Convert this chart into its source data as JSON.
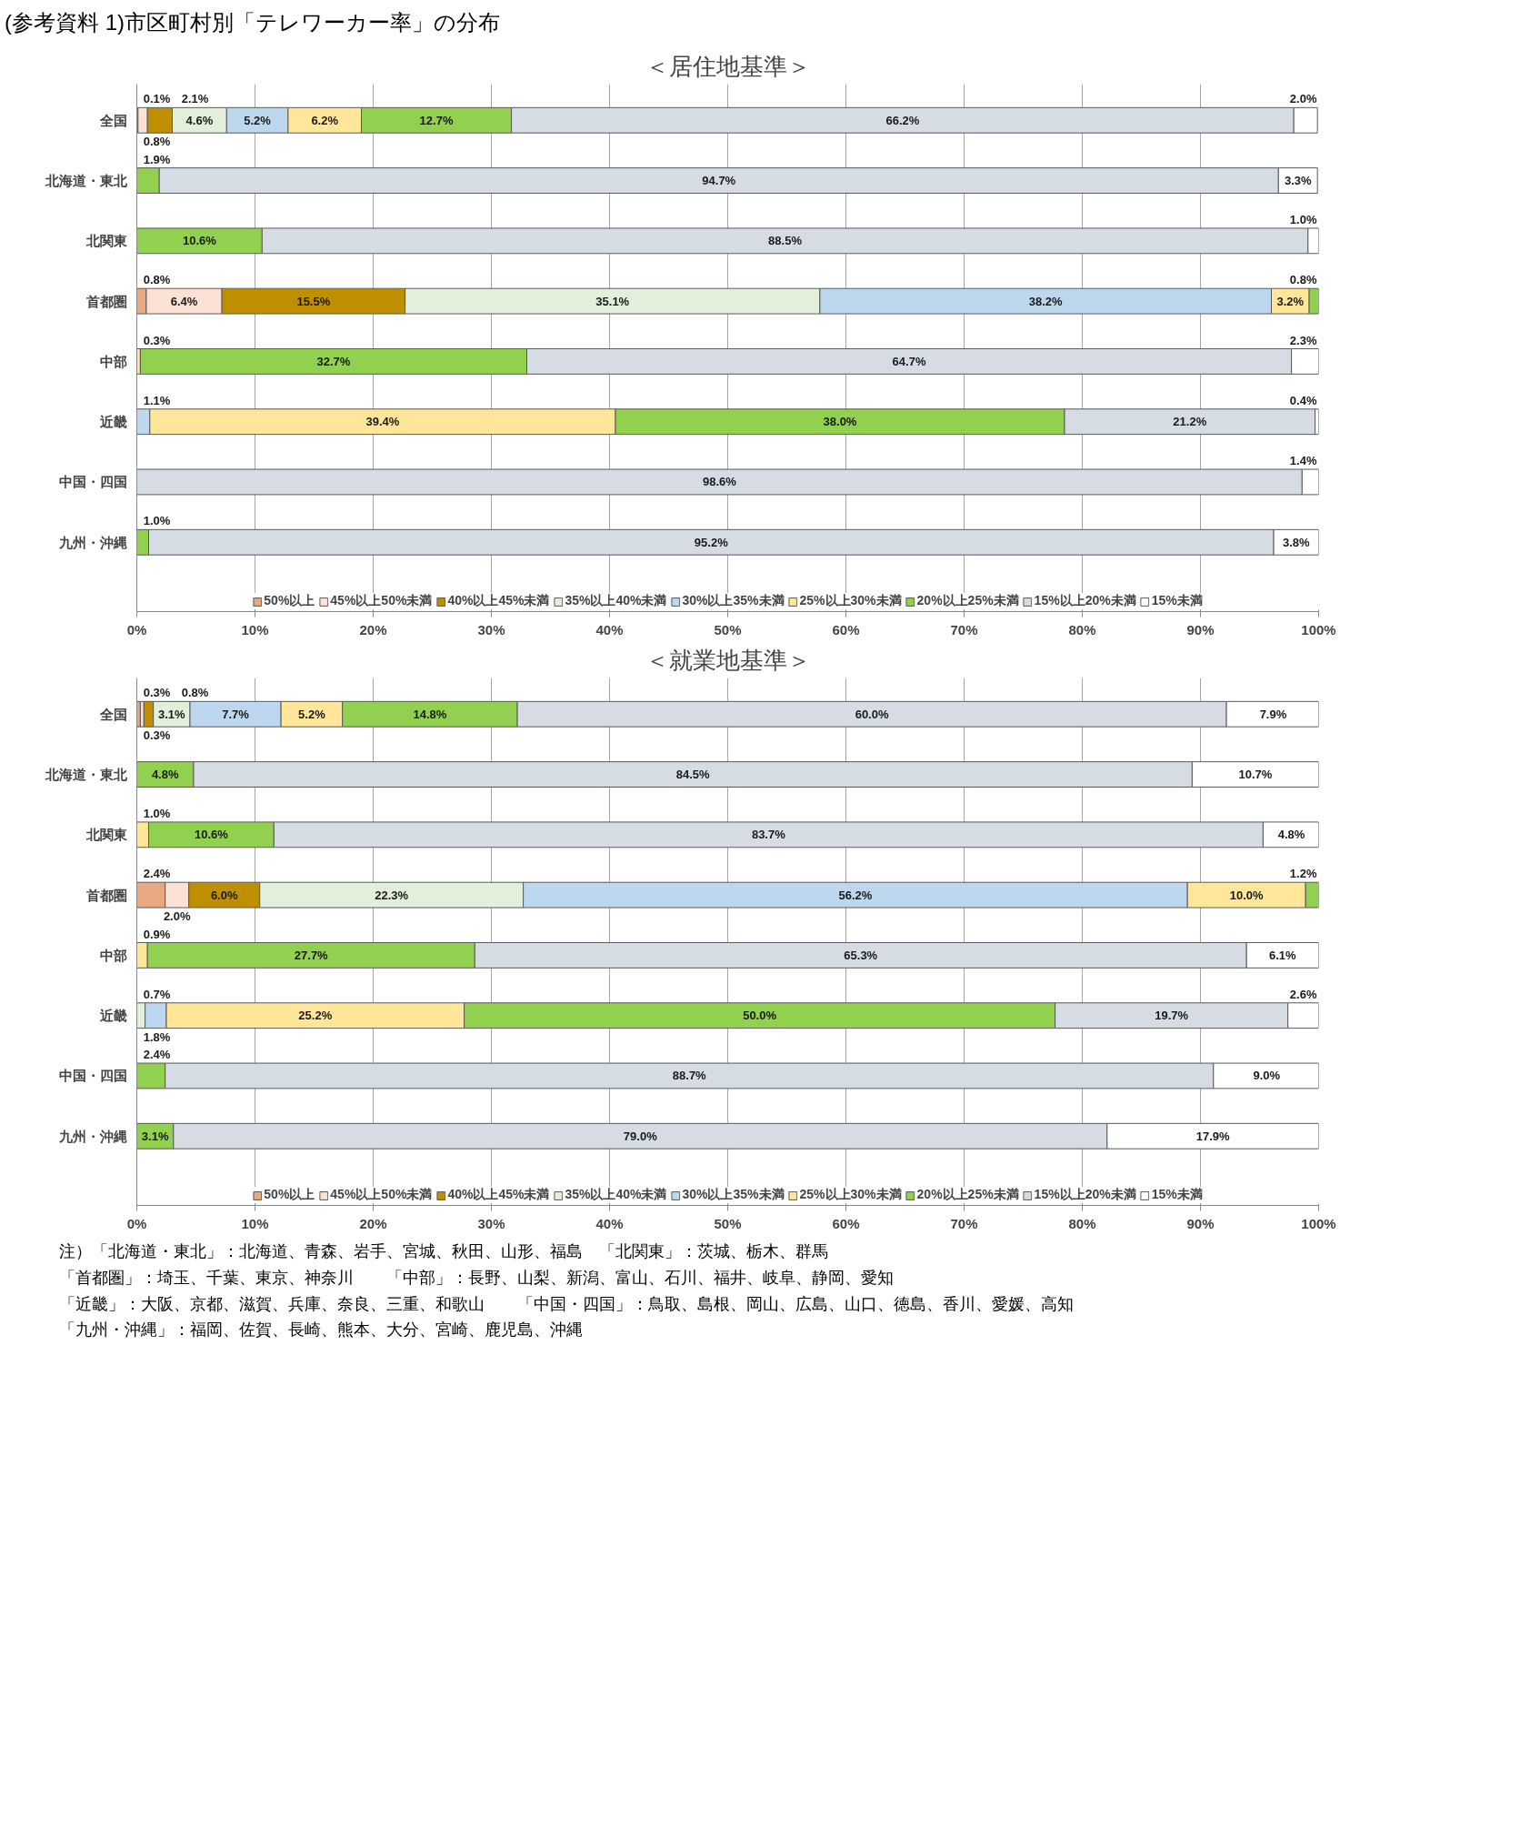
{
  "chart_data": [
    {
      "type": "bar",
      "orientation": "horizontal",
      "stacked": true,
      "title": "＜居住地基準＞",
      "annotations": [
        "(参考資料 1)市区町村別「テレワーカー率」の分布"
      ],
      "categories": [
        "全国",
        "北海道・東北",
        "北関東",
        "首都圏",
        "中部",
        "近畿",
        "中国・四国",
        "九州・沖縄"
      ],
      "xlim": [
        0,
        100
      ],
      "xticks": [
        {
          "value": 0,
          "label": "0%"
        },
        {
          "value": 10,
          "label": "10%"
        },
        {
          "value": 20,
          "label": "20%"
        },
        {
          "value": 30,
          "label": "30%"
        },
        {
          "value": 40,
          "label": "40%"
        },
        {
          "value": 50,
          "label": "50%"
        },
        {
          "value": 60,
          "label": "60%"
        },
        {
          "value": 70,
          "label": "70%"
        },
        {
          "value": 80,
          "label": "80%"
        },
        {
          "value": 90,
          "label": "90%"
        },
        {
          "value": 100,
          "label": "100%"
        }
      ],
      "grid": "x",
      "legend": "bottom",
      "series": [
        {
          "name": "50%以上",
          "color": "#e8a882",
          "values": [
            0.1,
            null,
            null,
            0.8,
            null,
            null,
            null,
            null
          ],
          "value_labels": [
            "0.1%",
            null,
            null,
            "0.8%",
            null,
            null,
            null,
            null
          ]
        },
        {
          "name": "45%以上50%未満",
          "color": "#fbe2d5",
          "values": [
            0.8,
            null,
            null,
            6.4,
            null,
            null,
            null,
            null
          ],
          "value_labels": [
            "0.8%",
            null,
            null,
            "6.4%",
            null,
            null,
            null,
            null
          ]
        },
        {
          "name": "40%以上45%未満",
          "color": "#bf8f00",
          "values": [
            2.1,
            null,
            null,
            15.5,
            null,
            null,
            null,
            null
          ],
          "value_labels": [
            "2.1%",
            null,
            null,
            "15.5%",
            null,
            null,
            null,
            null
          ]
        },
        {
          "name": "35%以上40%未満",
          "color": "#e2efda",
          "values": [
            4.6,
            null,
            null,
            35.1,
            null,
            null,
            null,
            null
          ],
          "value_labels": [
            "4.6%",
            null,
            null,
            "35.1%",
            null,
            null,
            null,
            null
          ]
        },
        {
          "name": "30%以上35%未満",
          "color": "#bdd7ee",
          "values": [
            5.2,
            null,
            null,
            38.2,
            null,
            1.1,
            null,
            null
          ],
          "value_labels": [
            "5.2%",
            null,
            null,
            "38.2%",
            null,
            "1.1%",
            null,
            null
          ]
        },
        {
          "name": "25%以上30%未満",
          "color": "#ffe699",
          "values": [
            6.2,
            null,
            null,
            3.2,
            0.3,
            39.4,
            null,
            null
          ],
          "value_labels": [
            "6.2%",
            null,
            null,
            "3.2%",
            "0.3%",
            "39.4%",
            null,
            null
          ]
        },
        {
          "name": "20%以上25%未満",
          "color": "#92d050",
          "values": [
            12.7,
            1.9,
            10.6,
            0.8,
            32.7,
            38.0,
            null,
            1.0
          ],
          "value_labels": [
            "12.7%",
            "1.9%",
            "10.6%",
            "0.8%",
            "32.7%",
            "38.0%",
            null,
            "1.0%"
          ]
        },
        {
          "name": "15%以上20%未満",
          "color": "#d6dce4",
          "values": [
            66.2,
            94.7,
            88.5,
            null,
            64.7,
            21.2,
            98.6,
            95.2
          ],
          "value_labels": [
            "66.2%",
            "94.7%",
            "88.5%",
            null,
            "64.7%",
            "21.2%",
            "98.6%",
            "95.2%"
          ]
        },
        {
          "name": "15%未満",
          "color": "#ffffff",
          "values": [
            2.0,
            3.3,
            1.0,
            null,
            2.3,
            0.4,
            1.4,
            3.8
          ],
          "value_labels": [
            "2.0%",
            "3.3%",
            "1.0%",
            null,
            "2.3%",
            "0.4%",
            "1.4%",
            "3.8%"
          ]
        }
      ]
    },
    {
      "type": "bar",
      "orientation": "horizontal",
      "stacked": true,
      "title": "＜就業地基準＞",
      "annotations": [
        "注）「北海道・東北」：北海道、青森、岩手、宮城、秋田、山形、福島　「北関東」：茨城、栃木、群馬",
        "「首都圏」：埼玉、千葉、東京、神奈川　　「中部」：長野、山梨、新潟、富山、石川、福井、岐阜、静岡、愛知",
        "「近畿」：大阪、京都、滋賀、兵庫、奈良、三重、和歌山　　「中国・四国」：鳥取、島根、岡山、広島、山口、徳島、香川、愛媛、高知",
        "「九州・沖縄」：福岡、佐賀、長崎、熊本、大分、宮崎、鹿児島、沖縄"
      ],
      "categories": [
        "全国",
        "北海道・東北",
        "北関東",
        "首都圏",
        "中部",
        "近畿",
        "中国・四国",
        "九州・沖縄"
      ],
      "xlim": [
        0,
        100
      ],
      "xticks": [
        {
          "value": 0,
          "label": "0%"
        },
        {
          "value": 10,
          "label": "10%"
        },
        {
          "value": 20,
          "label": "20%"
        },
        {
          "value": 30,
          "label": "30%"
        },
        {
          "value": 40,
          "label": "40%"
        },
        {
          "value": 50,
          "label": "50%"
        },
        {
          "value": 60,
          "label": "60%"
        },
        {
          "value": 70,
          "label": "70%"
        },
        {
          "value": 80,
          "label": "80%"
        },
        {
          "value": 90,
          "label": "90%"
        },
        {
          "value": 100,
          "label": "100%"
        }
      ],
      "grid": "x",
      "legend": "bottom",
      "series": [
        {
          "name": "50%以上",
          "color": "#e8a882",
          "values": [
            0.3,
            null,
            null,
            2.4,
            null,
            null,
            null,
            null
          ],
          "value_labels": [
            "0.3%",
            null,
            null,
            "2.4%",
            null,
            null,
            null,
            null
          ]
        },
        {
          "name": "45%以上50%未満",
          "color": "#fbe2d5",
          "values": [
            0.3,
            null,
            null,
            2.0,
            null,
            null,
            null,
            null
          ],
          "value_labels": [
            "0.3%",
            null,
            null,
            "2.0%",
            null,
            null,
            null,
            null
          ]
        },
        {
          "name": "40%以上45%未満",
          "color": "#bf8f00",
          "values": [
            0.8,
            null,
            null,
            6.0,
            null,
            null,
            null,
            null
          ],
          "value_labels": [
            "0.8%",
            null,
            null,
            "6.0%",
            null,
            null,
            null,
            null
          ]
        },
        {
          "name": "35%以上40%未満",
          "color": "#e2efda",
          "values": [
            3.1,
            null,
            null,
            22.3,
            null,
            0.7,
            null,
            null
          ],
          "value_labels": [
            "3.1%",
            null,
            null,
            "22.3%",
            null,
            "0.7%",
            null,
            null
          ]
        },
        {
          "name": "30%以上35%未満",
          "color": "#bdd7ee",
          "values": [
            7.7,
            null,
            null,
            56.2,
            null,
            1.8,
            null,
            null
          ],
          "value_labels": [
            "7.7%",
            null,
            null,
            "56.2%",
            null,
            "1.8%",
            null,
            null
          ]
        },
        {
          "name": "25%以上30%未満",
          "color": "#ffe699",
          "values": [
            5.2,
            null,
            1.0,
            10.0,
            0.9,
            25.2,
            null,
            null
          ],
          "value_labels": [
            "5.2%",
            null,
            "1.0%",
            "10.0%",
            "0.9%",
            "25.2%",
            null,
            null
          ]
        },
        {
          "name": "20%以上25%未満",
          "color": "#92d050",
          "values": [
            14.8,
            4.8,
            10.6,
            1.2,
            27.7,
            50.0,
            2.4,
            3.1
          ],
          "value_labels": [
            "14.8%",
            "4.8%",
            "10.6%",
            "1.2%",
            "27.7%",
            "50.0%",
            "2.4%",
            "3.1%"
          ]
        },
        {
          "name": "15%以上20%未満",
          "color": "#d6dce4",
          "values": [
            60.0,
            84.5,
            83.7,
            null,
            65.3,
            19.7,
            88.7,
            79.0
          ],
          "value_labels": [
            "60.0%",
            "84.5%",
            "83.7%",
            null,
            "65.3%",
            "19.7%",
            "88.7%",
            "79.0%"
          ]
        },
        {
          "name": "15%未満",
          "color": "#ffffff",
          "values": [
            7.9,
            10.7,
            4.8,
            null,
            6.1,
            2.6,
            9.0,
            17.9
          ],
          "value_labels": [
            "7.9%",
            "10.7%",
            "4.8%",
            null,
            "6.1%",
            "2.6%",
            "9.0%",
            "17.9%"
          ]
        }
      ]
    }
  ]
}
